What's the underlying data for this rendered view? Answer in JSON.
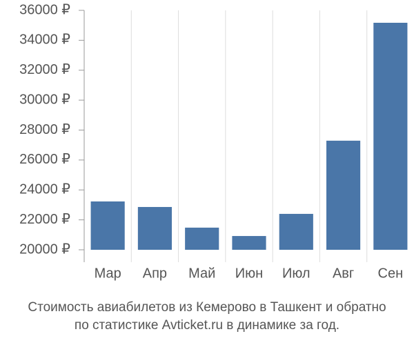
{
  "chart_data": {
    "type": "bar",
    "title": [
      "Стоимость авиабилетов из Кемерово в Ташкент и обратно",
      "по статистике Avticket.ru в динамике за год."
    ],
    "categories": [
      "Мар",
      "Апр",
      "Май",
      "Июн",
      "Июл",
      "Авг",
      "Сен"
    ],
    "values": [
      23230,
      22860,
      21480,
      20920,
      22400,
      27290,
      35170
    ],
    "color": "#4a76a8",
    "ylim": [
      20000,
      36000
    ],
    "yticks": [
      {
        "value": 20000,
        "label": "20000 ₽"
      },
      {
        "value": 22000,
        "label": "22000 ₽"
      },
      {
        "value": 24000,
        "label": "24000 ₽"
      },
      {
        "value": 26000,
        "label": "26000 ₽"
      },
      {
        "value": 28000,
        "label": "28000 ₽"
      },
      {
        "value": 30000,
        "label": "30000 ₽"
      },
      {
        "value": 32000,
        "label": "32000 ₽"
      },
      {
        "value": 34000,
        "label": "34000 ₽"
      },
      {
        "value": 36000,
        "label": "36000 ₽"
      }
    ],
    "grid": true
  }
}
